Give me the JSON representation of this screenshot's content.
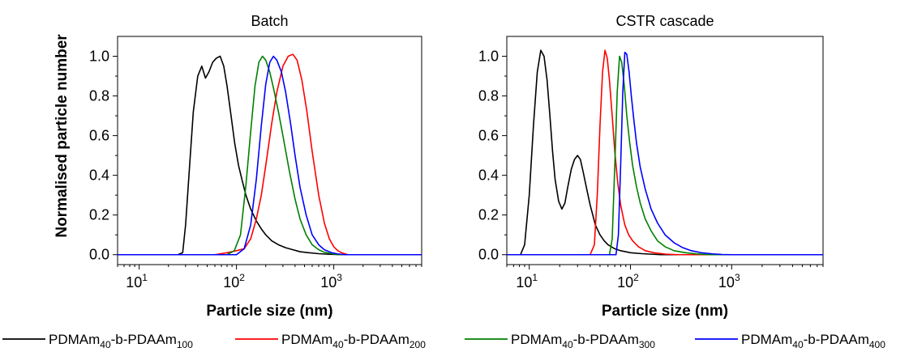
{
  "ylabel": "Normalised particle number",
  "legend": [
    {
      "name": "PDMAm40-b-PDAAm100",
      "parts": [
        "PDMAm",
        "40",
        "-b-PDAAm",
        "100"
      ],
      "color": "#000000"
    },
    {
      "name": "PDMAm40-b-PDAAm200",
      "parts": [
        "PDMAm",
        "40",
        "-b-PDAAm",
        "200"
      ],
      "color": "#ff0000"
    },
    {
      "name": "PDMAm40-b-PDAAm300",
      "parts": [
        "PDMAm",
        "40",
        "-b-PDAAm",
        "300"
      ],
      "color": "#008000"
    },
    {
      "name": "PDMAm40-b-PDAAm400",
      "parts": [
        "PDMAm",
        "40",
        "-b-PDAAm",
        "400"
      ],
      "color": "#0000ff"
    }
  ],
  "chart_data": [
    {
      "type": "line",
      "title": "Batch",
      "xlabel": "Particle size (nm)",
      "ylabel": "Normalised particle number",
      "xscale": "log",
      "xlim": [
        6,
        8000
      ],
      "ylim": [
        -0.05,
        1.1
      ],
      "yticks": [
        "0.0",
        "0.2",
        "0.4",
        "0.6",
        "0.8",
        "1.0"
      ],
      "xticks": [
        {
          "base": "10",
          "exp": "1"
        },
        {
          "base": "10",
          "exp": "2"
        },
        {
          "base": "10",
          "exp": "3"
        }
      ],
      "series": [
        {
          "name": "PDMAm40-b-PDAAm100",
          "color": "#000000",
          "x": [
            6,
            25,
            28,
            30,
            33,
            36,
            40,
            44,
            48,
            52,
            57,
            62,
            68,
            74,
            80,
            88,
            96,
            105,
            115,
            125,
            140,
            160,
            180,
            200,
            230,
            270,
            320,
            380,
            450,
            550,
            700,
            900,
            1200,
            2000,
            8000
          ],
          "y": [
            0,
            0,
            0.01,
            0.15,
            0.45,
            0.72,
            0.9,
            0.95,
            0.89,
            0.92,
            0.97,
            0.99,
            1.0,
            0.95,
            0.85,
            0.7,
            0.56,
            0.45,
            0.37,
            0.3,
            0.23,
            0.17,
            0.13,
            0.1,
            0.07,
            0.05,
            0.035,
            0.025,
            0.015,
            0.01,
            0.005,
            0.002,
            0,
            0,
            0
          ]
        },
        {
          "name": "PDMAm40-b-PDAAm200",
          "color": "#ff0000",
          "x": [
            6,
            60,
            80,
            100,
            120,
            140,
            160,
            180,
            200,
            230,
            260,
            300,
            340,
            380,
            420,
            470,
            530,
            600,
            700,
            800,
            900,
            1000,
            1100,
            1200,
            1400,
            8000
          ],
          "y": [
            0,
            0,
            0.01,
            0.02,
            0.03,
            0.08,
            0.18,
            0.3,
            0.45,
            0.66,
            0.82,
            0.95,
            1.0,
            1.01,
            0.98,
            0.88,
            0.72,
            0.52,
            0.3,
            0.16,
            0.08,
            0.04,
            0.02,
            0.01,
            0,
            0
          ]
        },
        {
          "name": "PDMAm40-b-PDAAm300",
          "color": "#008000",
          "x": [
            6,
            80,
            95,
            110,
            125,
            140,
            155,
            170,
            185,
            200,
            220,
            240,
            270,
            300,
            350,
            400,
            450,
            520,
            600,
            700,
            800,
            950,
            1100,
            8000
          ],
          "y": [
            0,
            0,
            0.02,
            0.1,
            0.35,
            0.62,
            0.85,
            0.97,
            1.0,
            0.98,
            0.92,
            0.84,
            0.72,
            0.6,
            0.42,
            0.28,
            0.18,
            0.1,
            0.05,
            0.025,
            0.012,
            0.005,
            0,
            0
          ]
        },
        {
          "name": "PDMAm40-b-PDAAm400",
          "color": "#0000ff",
          "x": [
            6,
            100,
            120,
            140,
            160,
            180,
            200,
            220,
            240,
            260,
            290,
            320,
            360,
            400,
            450,
            520,
            600,
            700,
            800,
            950,
            1100,
            1300,
            8000
          ],
          "y": [
            0,
            0,
            0.03,
            0.15,
            0.38,
            0.65,
            0.86,
            0.97,
            1.0,
            0.98,
            0.92,
            0.82,
            0.66,
            0.5,
            0.34,
            0.2,
            0.1,
            0.05,
            0.025,
            0.01,
            0.004,
            0,
            0
          ]
        }
      ]
    },
    {
      "type": "line",
      "title": "CSTR cascade",
      "xlabel": "Particle size (nm)",
      "ylabel": "",
      "xscale": "log",
      "xlim": [
        6,
        8000
      ],
      "ylim": [
        -0.05,
        1.1
      ],
      "yticks": [
        "0.0",
        "0.2",
        "0.4",
        "0.6",
        "0.8",
        "1.0"
      ],
      "xticks": [
        {
          "base": "10",
          "exp": "1"
        },
        {
          "base": "10",
          "exp": "2"
        },
        {
          "base": "10",
          "exp": "3"
        }
      ],
      "series": [
        {
          "name": "PDMAm40-b-PDAAm100",
          "color": "#000000",
          "x": [
            6,
            8.2,
            9,
            10,
            11,
            12,
            13,
            14,
            15,
            16,
            17,
            18,
            19.5,
            21,
            22.5,
            24,
            26,
            28,
            30,
            32,
            34,
            37,
            40,
            45,
            50,
            55,
            60,
            70,
            80,
            100,
            130,
            200,
            8000
          ],
          "y": [
            0,
            0,
            0.05,
            0.3,
            0.65,
            0.92,
            1.03,
            1.0,
            0.88,
            0.7,
            0.52,
            0.38,
            0.27,
            0.23,
            0.26,
            0.34,
            0.43,
            0.48,
            0.5,
            0.48,
            0.42,
            0.33,
            0.25,
            0.15,
            0.1,
            0.07,
            0.05,
            0.03,
            0.02,
            0.01,
            0.005,
            0,
            0
          ]
        },
        {
          "name": "PDMAm40-b-PDAAm200",
          "color": "#ff0000",
          "x": [
            6,
            40,
            44,
            47,
            50,
            53,
            56,
            59,
            62,
            66,
            70,
            75,
            80,
            88,
            96,
            105,
            120,
            140,
            170,
            220,
            300,
            8000
          ],
          "y": [
            0,
            0,
            0.05,
            0.3,
            0.65,
            0.92,
            1.03,
            0.99,
            0.88,
            0.7,
            0.52,
            0.36,
            0.25,
            0.15,
            0.1,
            0.07,
            0.04,
            0.02,
            0.01,
            0.003,
            0,
            0
          ]
        },
        {
          "name": "PDMAm40-b-PDAAm300",
          "color": "#008000",
          "x": [
            6,
            62,
            66,
            70,
            74,
            78,
            82,
            87,
            92,
            98,
            105,
            115,
            125,
            140,
            160,
            185,
            220,
            270,
            350,
            450,
            600,
            8000
          ],
          "y": [
            0,
            0,
            0.08,
            0.45,
            0.82,
            1.0,
            0.97,
            0.85,
            0.7,
            0.57,
            0.45,
            0.34,
            0.26,
            0.18,
            0.12,
            0.07,
            0.04,
            0.02,
            0.01,
            0.004,
            0,
            0
          ]
        },
        {
          "name": "PDMAm40-b-PDAAm400",
          "color": "#0000ff",
          "x": [
            6,
            72,
            76,
            80,
            84,
            88,
            92,
            97,
            102,
            108,
            115,
            125,
            140,
            160,
            185,
            220,
            270,
            330,
            400,
            500,
            650,
            800,
            1000,
            8000
          ],
          "y": [
            0,
            0,
            0.1,
            0.45,
            0.82,
            1.02,
            1.01,
            0.92,
            0.8,
            0.68,
            0.56,
            0.44,
            0.33,
            0.23,
            0.16,
            0.1,
            0.06,
            0.035,
            0.02,
            0.01,
            0.004,
            0.001,
            0,
            0
          ]
        }
      ]
    }
  ]
}
